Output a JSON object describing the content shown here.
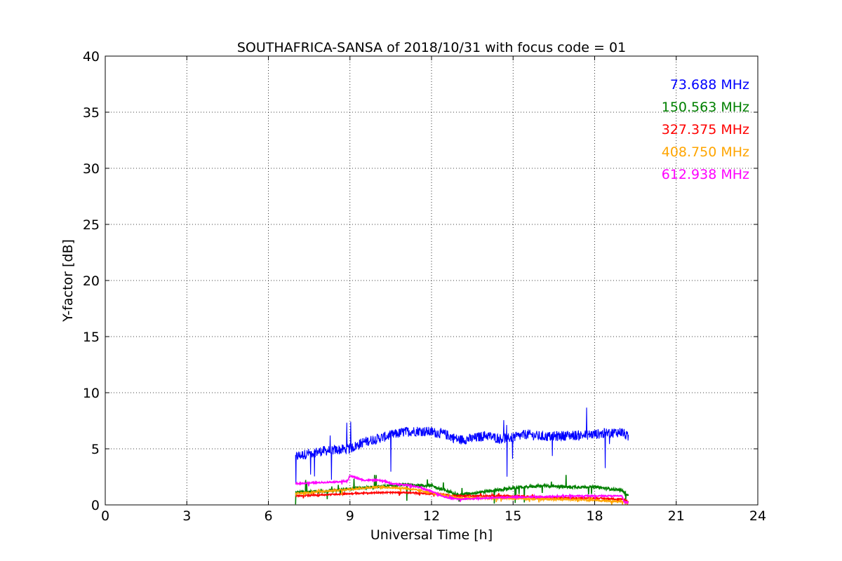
{
  "chart_data": {
    "type": "line",
    "title": "SOUTHAFRICA-SANSA of 2018/10/31 with focus code = 01",
    "xlabel": "Universal Time [h]",
    "ylabel": "Y-factor [dB]",
    "xlim": [
      0,
      24
    ],
    "ylim": [
      0,
      40
    ],
    "xticks": [
      0,
      3,
      6,
      9,
      12,
      15,
      18,
      21,
      24
    ],
    "yticks": [
      0,
      5,
      10,
      15,
      20,
      25,
      30,
      35,
      40
    ],
    "xtick_labels": [
      "0",
      "3",
      "6",
      "9",
      "12",
      "15",
      "18",
      "21",
      "24"
    ],
    "ytick_labels": [
      "0",
      "5",
      "10",
      "15",
      "20",
      "25",
      "30",
      "35",
      "40"
    ],
    "grid": true,
    "legend_position": "top-right",
    "series": [
      {
        "name": "73.688 MHz",
        "color": "#0000ff",
        "x": [
          7.0,
          7.5,
          8.0,
          8.5,
          9.0,
          9.5,
          10.0,
          10.5,
          11.0,
          11.5,
          12.0,
          12.5,
          13.0,
          13.5,
          14.0,
          14.5,
          15.0,
          15.5,
          16.0,
          16.5,
          17.0,
          17.5,
          18.0,
          18.5,
          19.0,
          19.25
        ],
        "y": [
          4.3,
          4.6,
          4.8,
          4.9,
          5.0,
          5.6,
          5.9,
          6.2,
          6.5,
          6.6,
          6.5,
          6.3,
          5.8,
          5.9,
          6.2,
          5.9,
          6.0,
          6.3,
          6.1,
          6.1,
          6.2,
          6.2,
          6.3,
          6.4,
          6.5,
          6.0
        ]
      },
      {
        "name": "150.563 MHz",
        "color": "#008000",
        "x": [
          7.0,
          8.0,
          9.0,
          10.0,
          11.0,
          12.0,
          12.5,
          13.0,
          14.0,
          15.0,
          16.0,
          17.0,
          18.0,
          19.0,
          19.25
        ],
        "y": [
          1.1,
          1.2,
          1.4,
          1.6,
          1.8,
          1.7,
          1.3,
          0.9,
          1.2,
          1.5,
          1.7,
          1.6,
          1.6,
          1.3,
          0.8
        ]
      },
      {
        "name": "327.375 MHz",
        "color": "#ff0000",
        "x": [
          7.0,
          8.0,
          9.0,
          10.0,
          11.0,
          12.0,
          13.0,
          14.0,
          15.0,
          16.0,
          17.0,
          18.0,
          19.0,
          19.25
        ],
        "y": [
          0.8,
          0.9,
          1.0,
          1.1,
          1.1,
          1.0,
          0.8,
          0.8,
          0.8,
          0.7,
          0.6,
          0.6,
          0.5,
          0.3
        ]
      },
      {
        "name": "408.750 MHz",
        "color": "#ffa500",
        "x": [
          7.0,
          8.0,
          9.0,
          10.0,
          11.0,
          12.0,
          13.0,
          14.0,
          15.0,
          16.0,
          17.0,
          18.0,
          19.0,
          19.25
        ],
        "y": [
          1.0,
          1.2,
          1.4,
          1.6,
          1.5,
          1.1,
          0.6,
          0.6,
          0.6,
          0.5,
          0.5,
          0.4,
          0.3,
          0.2
        ]
      },
      {
        "name": "612.938 MHz",
        "color": "#ff00ff",
        "x": [
          7.0,
          8.0,
          8.9,
          9.0,
          9.5,
          10.0,
          10.3,
          10.5,
          11.0,
          11.5,
          12.0,
          12.5,
          13.0,
          14.0,
          15.0,
          16.0,
          17.0,
          18.0,
          19.0,
          19.1,
          19.25
        ],
        "y": [
          1.9,
          2.0,
          2.1,
          2.6,
          2.2,
          2.2,
          2.1,
          1.9,
          1.8,
          1.6,
          1.2,
          0.7,
          0.5,
          0.6,
          0.7,
          0.7,
          0.8,
          0.8,
          0.8,
          0.2,
          0.2
        ]
      }
    ]
  }
}
